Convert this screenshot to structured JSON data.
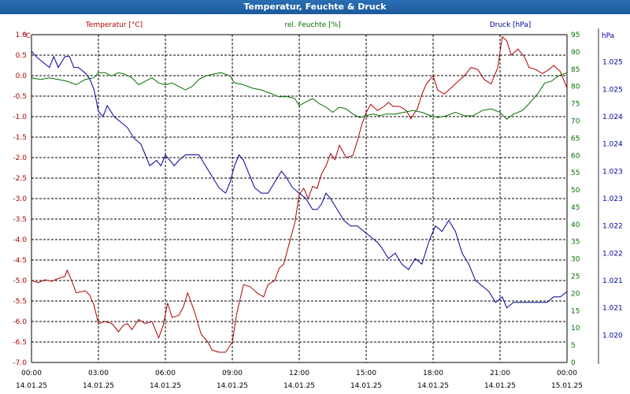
{
  "window": {
    "title": "Temperatur, Feuchte & Druck"
  },
  "colors": {
    "temperature": "#b00000",
    "humidity": "#007000",
    "pressure": "#000099",
    "grid": "#000000",
    "title_bar": "#1f62a8"
  },
  "chart_data": {
    "type": "line",
    "title": "Temperatur, Feuchte & Druck",
    "grid": true,
    "axes": {
      "temperature": {
        "label": "Temperatur [°C]",
        "unit": "°C",
        "position": "left",
        "range": [
          -7.0,
          1.0
        ],
        "ticks": [
          "1.0",
          "0.5",
          "0.0",
          "-0.5",
          "-1.0",
          "-1.5",
          "-2.0",
          "-2.5",
          "-3.0",
          "-3.5",
          "-4.0",
          "-4.5",
          "-5.0",
          "-5.5",
          "-6.0",
          "-6.5",
          "-7.0"
        ]
      },
      "humidity": {
        "label": "rel. Feuchte [%]",
        "unit": "%",
        "position": "right",
        "range": [
          0,
          95
        ],
        "ticks": [
          "95",
          "90",
          "85",
          "80",
          "75",
          "70",
          "65",
          "60",
          "55",
          "50",
          "45",
          "40",
          "35",
          "30",
          "25",
          "20",
          "15",
          "10",
          "5",
          "0"
        ]
      },
      "pressure": {
        "label": "Druck [hPa]",
        "unit": "hPa",
        "position": "far-right",
        "range": [
          1.0195,
          1.0255
        ],
        "ticks": [
          {
            "v": 1.025,
            "t": "1.025"
          },
          {
            "v": 1.0245,
            "t": "1.025"
          },
          {
            "v": 1.024,
            "t": "1.024"
          },
          {
            "v": 1.0235,
            "t": "1.024"
          },
          {
            "v": 1.023,
            "t": "1.023"
          },
          {
            "v": 1.0225,
            "t": "1.023"
          },
          {
            "v": 1.022,
            "t": "1.022"
          },
          {
            "v": 1.0215,
            "t": "1.022"
          },
          {
            "v": 1.021,
            "t": "1.021"
          },
          {
            "v": 1.0205,
            "t": "1.021"
          },
          {
            "v": 1.02,
            "t": "1.020"
          }
        ]
      },
      "x": {
        "range_hours": [
          0,
          24
        ],
        "ticks": [
          {
            "h": 0,
            "time": "00:00",
            "date": "14.01.25"
          },
          {
            "h": 3,
            "time": "03:00",
            "date": "14.01.25"
          },
          {
            "h": 6,
            "time": "06:00",
            "date": "14.01.25"
          },
          {
            "h": 9,
            "time": "09:00",
            "date": "14.01.25"
          },
          {
            "h": 12,
            "time": "12:00",
            "date": "14.01.25"
          },
          {
            "h": 15,
            "time": "15:00",
            "date": "14.01.25"
          },
          {
            "h": 18,
            "time": "18:00",
            "date": "14.01.25"
          },
          {
            "h": 21,
            "time": "21:00",
            "date": "14.01.25"
          },
          {
            "h": 24,
            "time": "00:00",
            "date": "15.01.25"
          }
        ]
      }
    },
    "series": [
      {
        "name": "Temperatur [°C]",
        "axis": "temperature",
        "points": [
          [
            0.0,
            -5.0
          ],
          [
            0.3,
            -5.05
          ],
          [
            0.6,
            -4.98
          ],
          [
            0.9,
            -5.02
          ],
          [
            1.2,
            -4.95
          ],
          [
            1.5,
            -4.9
          ],
          [
            1.6,
            -4.75
          ],
          [
            1.8,
            -5.0
          ],
          [
            2.0,
            -5.3
          ],
          [
            2.4,
            -5.25
          ],
          [
            2.6,
            -5.35
          ],
          [
            2.8,
            -5.6
          ],
          [
            3.0,
            -6.05
          ],
          [
            3.3,
            -6.0
          ],
          [
            3.6,
            -6.05
          ],
          [
            3.9,
            -6.25
          ],
          [
            4.1,
            -6.1
          ],
          [
            4.3,
            -6.05
          ],
          [
            4.5,
            -6.2
          ],
          [
            4.8,
            -5.95
          ],
          [
            5.1,
            -6.05
          ],
          [
            5.4,
            -6.0
          ],
          [
            5.7,
            -6.4
          ],
          [
            5.9,
            -6.1
          ],
          [
            6.1,
            -5.55
          ],
          [
            6.3,
            -5.9
          ],
          [
            6.6,
            -5.85
          ],
          [
            6.8,
            -5.65
          ],
          [
            7.0,
            -5.3
          ],
          [
            7.3,
            -5.75
          ],
          [
            7.6,
            -6.3
          ],
          [
            7.9,
            -6.5
          ],
          [
            8.1,
            -6.7
          ],
          [
            8.4,
            -6.75
          ],
          [
            8.7,
            -6.75
          ],
          [
            9.0,
            -6.5
          ],
          [
            9.2,
            -5.8
          ],
          [
            9.5,
            -5.1
          ],
          [
            9.8,
            -5.15
          ],
          [
            10.1,
            -5.3
          ],
          [
            10.4,
            -5.4
          ],
          [
            10.6,
            -5.1
          ],
          [
            10.9,
            -5.0
          ],
          [
            11.1,
            -4.7
          ],
          [
            11.3,
            -4.6
          ],
          [
            11.5,
            -4.2
          ],
          [
            11.8,
            -3.6
          ],
          [
            12.0,
            -2.9
          ],
          [
            12.2,
            -2.75
          ],
          [
            12.4,
            -3.0
          ],
          [
            12.6,
            -2.7
          ],
          [
            12.8,
            -2.75
          ],
          [
            13.0,
            -2.4
          ],
          [
            13.2,
            -2.2
          ],
          [
            13.4,
            -1.9
          ],
          [
            13.6,
            -2.05
          ],
          [
            13.8,
            -1.7
          ],
          [
            14.1,
            -2.0
          ],
          [
            14.4,
            -1.95
          ],
          [
            14.6,
            -1.6
          ],
          [
            14.8,
            -1.2
          ],
          [
            15.0,
            -0.9
          ],
          [
            15.2,
            -0.7
          ],
          [
            15.5,
            -0.85
          ],
          [
            15.8,
            -0.75
          ],
          [
            16.0,
            -0.65
          ],
          [
            16.2,
            -0.75
          ],
          [
            16.5,
            -0.75
          ],
          [
            16.8,
            -0.85
          ],
          [
            17.0,
            -1.05
          ],
          [
            17.3,
            -0.8
          ],
          [
            17.5,
            -0.45
          ],
          [
            17.7,
            -0.2
          ],
          [
            18.0,
            0.0
          ],
          [
            18.2,
            -0.35
          ],
          [
            18.5,
            -0.45
          ],
          [
            18.8,
            -0.3
          ],
          [
            19.1,
            -0.15
          ],
          [
            19.4,
            0.0
          ],
          [
            19.7,
            0.2
          ],
          [
            20.0,
            0.15
          ],
          [
            20.3,
            -0.1
          ],
          [
            20.6,
            -0.2
          ],
          [
            20.9,
            0.2
          ],
          [
            21.1,
            0.95
          ],
          [
            21.3,
            0.85
          ],
          [
            21.5,
            0.5
          ],
          [
            21.8,
            0.65
          ],
          [
            22.1,
            0.45
          ],
          [
            22.3,
            0.2
          ],
          [
            22.6,
            0.15
          ],
          [
            22.9,
            0.05
          ],
          [
            23.2,
            0.15
          ],
          [
            23.4,
            0.25
          ],
          [
            23.7,
            0.1
          ],
          [
            24.0,
            -0.3
          ]
        ]
      },
      {
        "name": "rel. Feuchte [%]",
        "axis": "humidity",
        "points": [
          [
            0.0,
            82.5
          ],
          [
            0.4,
            82
          ],
          [
            0.8,
            82.5
          ],
          [
            1.2,
            82
          ],
          [
            1.6,
            81.5
          ],
          [
            2.0,
            80.5
          ],
          [
            2.4,
            82
          ],
          [
            2.8,
            82.5
          ],
          [
            3.0,
            84
          ],
          [
            3.3,
            84
          ],
          [
            3.6,
            83
          ],
          [
            3.9,
            84
          ],
          [
            4.2,
            83.5
          ],
          [
            4.5,
            82.5
          ],
          [
            4.8,
            80.5
          ],
          [
            5.1,
            81.5
          ],
          [
            5.4,
            82.5
          ],
          [
            5.7,
            81
          ],
          [
            6.0,
            80.5
          ],
          [
            6.3,
            81
          ],
          [
            6.6,
            80
          ],
          [
            6.9,
            79
          ],
          [
            7.2,
            80
          ],
          [
            7.5,
            82
          ],
          [
            7.8,
            83
          ],
          [
            8.1,
            83.5
          ],
          [
            8.5,
            84
          ],
          [
            8.9,
            83
          ],
          [
            9.1,
            81
          ],
          [
            9.5,
            80.5
          ],
          [
            9.9,
            79.5
          ],
          [
            10.3,
            79
          ],
          [
            10.7,
            78
          ],
          [
            11.1,
            77
          ],
          [
            11.5,
            77
          ],
          [
            11.8,
            76.5
          ],
          [
            12.0,
            74.5
          ],
          [
            12.3,
            75.5
          ],
          [
            12.6,
            76.5
          ],
          [
            12.9,
            75
          ],
          [
            13.2,
            74
          ],
          [
            13.5,
            72.5
          ],
          [
            13.8,
            74
          ],
          [
            14.1,
            73.5
          ],
          [
            14.4,
            72
          ],
          [
            14.7,
            71
          ],
          [
            15.0,
            71.5
          ],
          [
            15.3,
            72
          ],
          [
            15.6,
            71.5
          ],
          [
            15.9,
            72
          ],
          [
            16.3,
            72
          ],
          [
            16.7,
            72.5
          ],
          [
            17.1,
            73
          ],
          [
            17.5,
            72.5
          ],
          [
            17.9,
            71.5
          ],
          [
            18.2,
            71
          ],
          [
            18.6,
            71.5
          ],
          [
            19.0,
            72.5
          ],
          [
            19.4,
            71.5
          ],
          [
            19.8,
            71.5
          ],
          [
            20.2,
            73
          ],
          [
            20.6,
            73.5
          ],
          [
            21.0,
            72.5
          ],
          [
            21.3,
            70.5
          ],
          [
            21.6,
            72
          ],
          [
            22.0,
            73
          ],
          [
            22.3,
            75
          ],
          [
            22.7,
            78
          ],
          [
            23.0,
            81
          ],
          [
            23.3,
            81.5
          ],
          [
            23.6,
            83
          ],
          [
            24.0,
            84
          ]
        ]
      },
      {
        "name": "Druck [hPa]",
        "axis": "pressure",
        "points": [
          [
            0.0,
            1.0252
          ],
          [
            0.2,
            1.0251
          ],
          [
            0.5,
            1.025
          ],
          [
            0.8,
            1.0249
          ],
          [
            1.0,
            1.0251
          ],
          [
            1.2,
            1.0249
          ],
          [
            1.5,
            1.0251
          ],
          [
            1.7,
            1.0251
          ],
          [
            1.9,
            1.0249
          ],
          [
            2.1,
            1.0249
          ],
          [
            2.4,
            1.0248
          ],
          [
            2.6,
            1.0247
          ],
          [
            2.8,
            1.0245
          ],
          [
            3.0,
            1.0241
          ],
          [
            3.2,
            1.024
          ],
          [
            3.4,
            1.0242
          ],
          [
            3.7,
            1.024
          ],
          [
            4.0,
            1.0239
          ],
          [
            4.3,
            1.0238
          ],
          [
            4.6,
            1.0236
          ],
          [
            4.9,
            1.0235
          ],
          [
            5.1,
            1.0233
          ],
          [
            5.3,
            1.0231
          ],
          [
            5.6,
            1.0232
          ],
          [
            5.8,
            1.0231
          ],
          [
            6.0,
            1.0233
          ],
          [
            6.2,
            1.0232
          ],
          [
            6.4,
            1.0231
          ],
          [
            6.6,
            1.0232
          ],
          [
            6.9,
            1.0233
          ],
          [
            7.2,
            1.0233
          ],
          [
            7.5,
            1.0233
          ],
          [
            7.8,
            1.0231
          ],
          [
            8.1,
            1.0229
          ],
          [
            8.4,
            1.0227
          ],
          [
            8.7,
            1.0226
          ],
          [
            8.9,
            1.0228
          ],
          [
            9.1,
            1.0231
          ],
          [
            9.3,
            1.0233
          ],
          [
            9.5,
            1.0232
          ],
          [
            9.8,
            1.0229
          ],
          [
            10.0,
            1.0227
          ],
          [
            10.3,
            1.0226
          ],
          [
            10.6,
            1.0226
          ],
          [
            10.9,
            1.0228
          ],
          [
            11.2,
            1.023
          ],
          [
            11.4,
            1.0229
          ],
          [
            11.7,
            1.0227
          ],
          [
            12.0,
            1.0226
          ],
          [
            12.3,
            1.0225
          ],
          [
            12.6,
            1.0223
          ],
          [
            12.8,
            1.0223
          ],
          [
            13.0,
            1.0224
          ],
          [
            13.2,
            1.0226
          ],
          [
            13.4,
            1.0225
          ],
          [
            13.7,
            1.0223
          ],
          [
            14.0,
            1.0221
          ],
          [
            14.3,
            1.022
          ],
          [
            14.6,
            1.022
          ],
          [
            14.9,
            1.0219
          ],
          [
            15.2,
            1.0218
          ],
          [
            15.5,
            1.0217
          ],
          [
            15.7,
            1.0216
          ],
          [
            16.0,
            1.0214
          ],
          [
            16.3,
            1.0215
          ],
          [
            16.6,
            1.0213
          ],
          [
            16.9,
            1.0212
          ],
          [
            17.2,
            1.0214
          ],
          [
            17.5,
            1.0213
          ],
          [
            17.8,
            1.0217
          ],
          [
            18.1,
            1.022
          ],
          [
            18.4,
            1.0219
          ],
          [
            18.7,
            1.0221
          ],
          [
            19.0,
            1.0219
          ],
          [
            19.3,
            1.0215
          ],
          [
            19.6,
            1.0213
          ],
          [
            19.9,
            1.021
          ],
          [
            20.2,
            1.0209
          ],
          [
            20.5,
            1.0208
          ],
          [
            20.8,
            1.0206
          ],
          [
            21.1,
            1.0207
          ],
          [
            21.3,
            1.0205
          ],
          [
            21.6,
            1.0206
          ],
          [
            21.9,
            1.0206
          ],
          [
            22.2,
            1.0206
          ],
          [
            22.5,
            1.0206
          ],
          [
            22.8,
            1.0206
          ],
          [
            23.1,
            1.0206
          ],
          [
            23.4,
            1.0207
          ],
          [
            23.7,
            1.0207
          ],
          [
            24.0,
            1.0208
          ]
        ]
      }
    ]
  }
}
